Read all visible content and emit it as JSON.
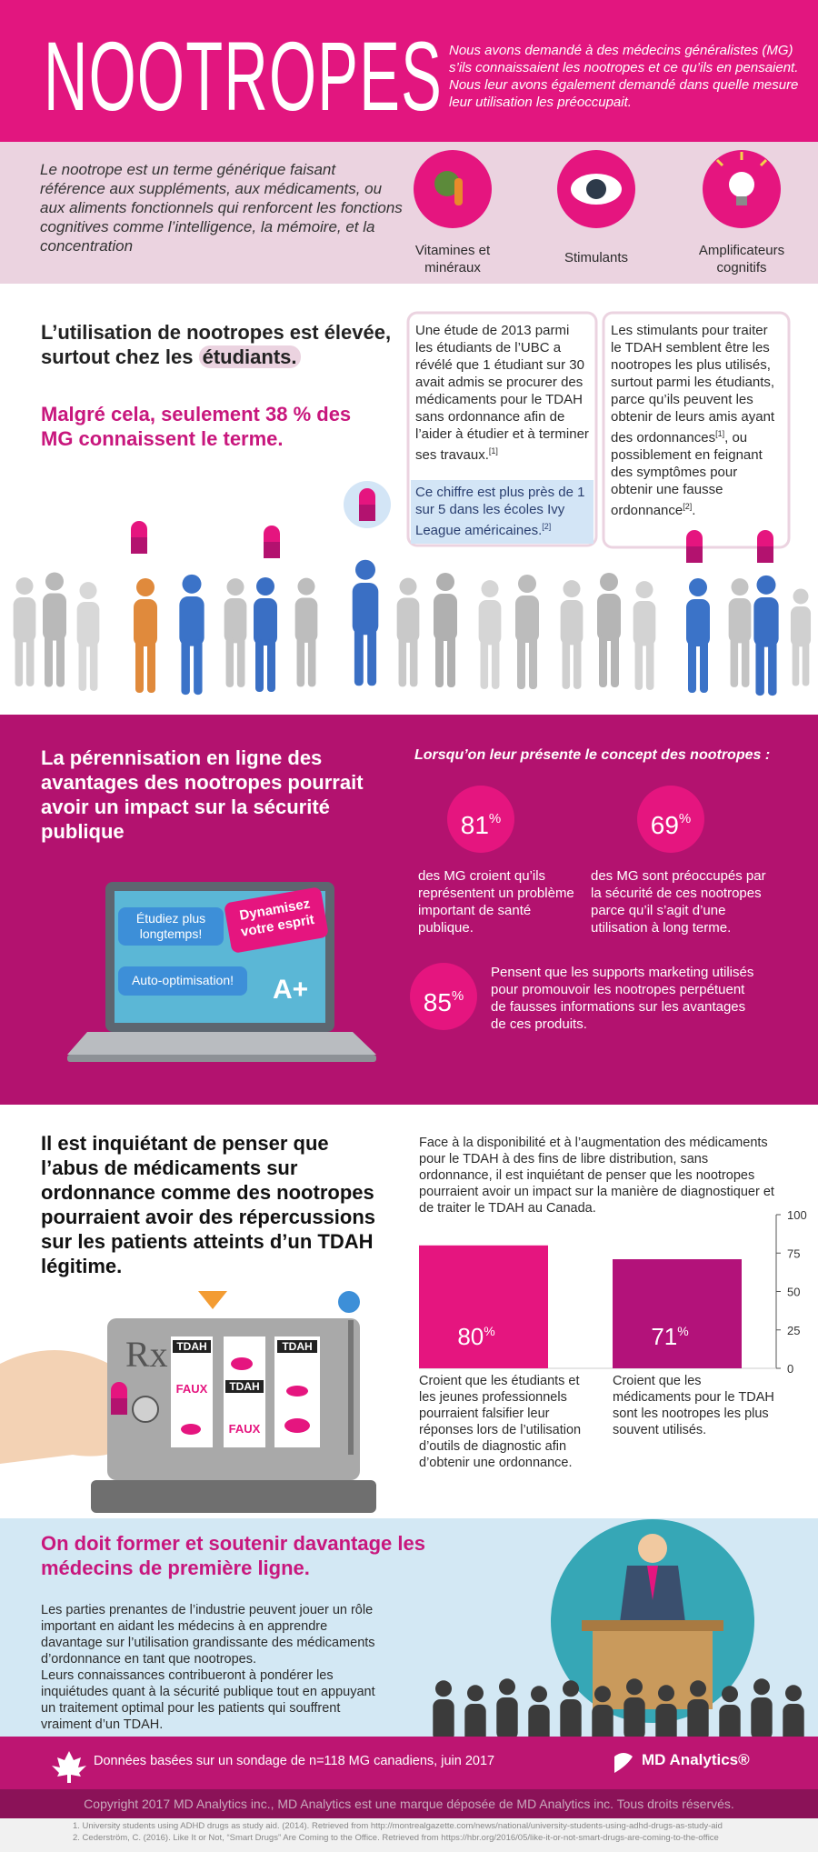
{
  "header": {
    "title": "NOOTROPES",
    "intro": "Nous avons demandé à des médecins généralistes (MG) s’ils connaissaient les nootropes et ce qu’ils en pensaient. Nous leur avons également demandé dans quelle mesure leur utilisation les préoccupait."
  },
  "definition": {
    "text": "Le nootrope est un terme générique faisant référence aux suppléments, aux médicaments, ou aux aliments fonctionnels qui renforcent les fonctions cognitives comme l’intelligence, la mémoire, et la concentration",
    "categories": [
      "Vitamines et minéraux",
      "Stimulants",
      "Amplificateurs cognitifs"
    ]
  },
  "usage": {
    "heading": "L’utilisation de nootropes est élevée, surtout chez les",
    "heading_highlight": "étudiants.",
    "subheading": "Malgré cela, seulement 38 % des MG connaissent le terme.",
    "study": [
      "Une étude de 2013 parmi les étudiants de l’UBC a révélé que 1 étudiant sur 30 avait admis se procurer des médicaments pour le TDAH sans ordonnance afin de l’aider à étudier et à terminer ses travaux.",
      "[1]"
    ],
    "ivy": [
      "Ce chiffre est plus près de 1 sur 5 dans les écoles Ivy League américaines.",
      "[2]"
    ],
    "stimulants": [
      "Les stimulants pour traiter le TDAH semblent être les nootropes les plus utilisés, surtout parmi les étudiants, parce qu’ils peuvent les obtenir de leurs amis ayant des ordonnances",
      "[1]",
      ", ou possiblement en feignant des symptômes pour obtenir une fausse ordonnance",
      "[2]",
      "."
    ]
  },
  "online": {
    "heading": "La pérennisation en ligne des avantages des nootropes pourrait avoir un impact sur la sécurité publique",
    "intro": "Lorsqu’on leur présente le concept des nootropes :",
    "stats": [
      {
        "value": 81,
        "unit": "%",
        "text": "des MG croient qu’ils représentent un problème important de santé publique."
      },
      {
        "value": 69,
        "unit": "%",
        "text": "des MG sont préoccupés par la sécurité de ces nootropes parce qu’il s’agit d’une utilisation à long terme."
      },
      {
        "value": 85,
        "unit": "%",
        "text": "Pensent que les supports marketing utilisés pour promouvoir les nootropes perpétuent de fausses informations sur les avantages de ces produits."
      }
    ],
    "laptop": {
      "bubbles": [
        "Étudiez plus longtemps!",
        "Dynamisez votre esprit",
        "Auto-optimisation!"
      ],
      "grade": "A+"
    }
  },
  "abuse": {
    "heading": "Il est inquiétant de penser que l’abus de médicaments sur ordonnance comme des nootropes pourraient avoir des répercussions sur les patients atteints d’un TDAH légitime.",
    "intro": "Face à la disponibilité et à l’augmentation des médicaments pour le TDAH à des fins de libre distribution, sans ordonnance, il est inquiétant de penser que les nootropes pourraient avoir un impact sur la manière de diagnostiquer et de traiter le TDAH au Canada.",
    "bar_chart": {
      "type": "bar",
      "values": [
        80,
        71
      ],
      "unit": "%",
      "colors": [
        "#e5157f",
        "#b3127a"
      ],
      "ylim": [
        0,
        100
      ],
      "yticks": [
        0,
        25,
        50,
        75,
        100
      ],
      "categories": [
        "Croient que les étudiants et les jeunes professionnels pourraient falsifier leur réponses lors de l’utilisation d’outils de diagnostic afin d’obtenir une ordonnance.",
        "Croient que les médicaments pour le TDAH sont les nootropes les plus souvent utilisés."
      ]
    },
    "slot_machine": {
      "symbol": "Rx",
      "labels": [
        "TDAH",
        "FAUX",
        "TDAH",
        "FAUX",
        "TDAH"
      ]
    }
  },
  "training": {
    "heading": "On doit former et soutenir davantage les médecins de première ligne.",
    "paragraphs": [
      "Les parties prenantes de l’industrie peuvent jouer un rôle important en aidant les médecins à en apprendre davantage sur l’utilisation grandissante des médicaments d’ordonnance en tant que nootropes.",
      "Leurs connaissances contribueront à pondérer les inquiétudes quant à la sécurité publique tout en appuyant un traitement optimal pour les patients qui souffrent vraiment d’un TDAH."
    ]
  },
  "footer": {
    "note": "Données basées sur un sondage de n=118 MG canadiens, juin 2017",
    "brand": "MD Analytics®",
    "copyright": "Copyright 2017 MD Analytics inc., MD Analytics est une marque déposée de MD Analytics inc. Tous droits réservés.",
    "references": [
      "1. University students using ADHD drugs as study aid. (2014). Retrieved from http://montrealgazette.com/news/national/university-students-using-adhd-drugs-as-study-aid",
      "2. Cederström, C. (2016). Like It or Not, “Smart Drugs” Are Coming to the Office. Retrieved from https://hbr.org/2016/05/like-it-or-not-smart-drugs-are-coming-to-the-office"
    ]
  }
}
